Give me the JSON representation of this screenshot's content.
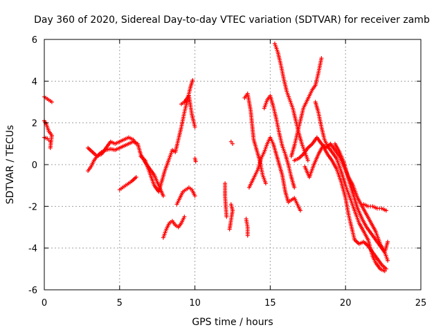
{
  "chart_data": {
    "type": "scatter",
    "title": "Day 360 of 2020, Sidereal Day-to-day VTEC variation (SDTVAR) for receiver zamb",
    "xlabel": "GPS time / hours",
    "ylabel": "SDTVAR / TECUs",
    "xlim": [
      0,
      25
    ],
    "ylim": [
      -6,
      6
    ],
    "xticks": [
      0,
      5,
      10,
      15,
      20,
      25
    ],
    "yticks": [
      -6,
      -4,
      -2,
      0,
      2,
      4,
      6
    ],
    "grid": true,
    "marker": "plus",
    "color": "#ff0000",
    "series": [
      {
        "segments": [
          [
            [
              0.0,
              3.25
            ],
            [
              0.2,
              3.15
            ],
            [
              0.5,
              3.0
            ]
          ],
          [
            [
              0.0,
              2.1
            ],
            [
              0.15,
              1.9
            ],
            [
              0.3,
              1.6
            ],
            [
              0.5,
              1.4
            ],
            [
              0.45,
              1.1
            ],
            [
              0.4,
              0.8
            ]
          ],
          [
            [
              0.0,
              1.3
            ],
            [
              0.2,
              1.25
            ],
            [
              0.4,
              1.1
            ]
          ],
          [
            [
              2.9,
              0.8
            ],
            [
              3.2,
              0.6
            ],
            [
              3.5,
              0.4
            ],
            [
              3.8,
              0.5
            ],
            [
              4.1,
              0.8
            ],
            [
              4.4,
              1.1
            ],
            [
              4.7,
              1.0
            ],
            [
              5.0,
              1.1
            ],
            [
              5.3,
              1.2
            ],
            [
              5.6,
              1.3
            ],
            [
              5.9,
              1.2
            ],
            [
              6.1,
              1.0
            ]
          ],
          [
            [
              2.9,
              -0.3
            ],
            [
              3.1,
              -0.1
            ],
            [
              3.3,
              0.2
            ],
            [
              3.5,
              0.4
            ],
            [
              3.8,
              0.6
            ],
            [
              4.1,
              0.7
            ],
            [
              4.4,
              0.75
            ],
            [
              4.7,
              0.7
            ],
            [
              5.0,
              0.8
            ],
            [
              5.3,
              0.9
            ],
            [
              5.6,
              1.0
            ],
            [
              5.9,
              1.1
            ],
            [
              6.2,
              1.0
            ],
            [
              6.4,
              0.5
            ],
            [
              6.7,
              0.1
            ],
            [
              7.0,
              -0.2
            ],
            [
              7.3,
              -0.5
            ],
            [
              7.6,
              -1.0
            ],
            [
              7.9,
              -1.5
            ]
          ],
          [
            [
              5.0,
              -1.2
            ],
            [
              5.4,
              -1.0
            ],
            [
              5.8,
              -0.8
            ],
            [
              6.1,
              -0.6
            ]
          ],
          [
            [
              6.4,
              0.4
            ],
            [
              6.7,
              0.2
            ],
            [
              7.0,
              -0.4
            ],
            [
              7.3,
              -1.0
            ],
            [
              7.6,
              -1.3
            ],
            [
              7.8,
              -0.8
            ],
            [
              8.0,
              -0.3
            ],
            [
              8.3,
              0.3
            ],
            [
              8.5,
              0.7
            ],
            [
              8.7,
              0.6
            ],
            [
              8.9,
              1.2
            ],
            [
              9.1,
              1.8
            ],
            [
              9.3,
              2.5
            ],
            [
              9.5,
              3.1
            ],
            [
              9.7,
              3.7
            ],
            [
              9.85,
              4.05
            ]
          ],
          [
            [
              8.8,
              -1.9
            ],
            [
              9.0,
              -1.6
            ],
            [
              9.2,
              -1.3
            ],
            [
              9.4,
              -1.2
            ],
            [
              9.6,
              -1.1
            ],
            [
              9.8,
              -1.2
            ],
            [
              10.0,
              -1.5
            ]
          ],
          [
            [
              7.9,
              -3.5
            ],
            [
              8.1,
              -3.1
            ],
            [
              8.3,
              -2.8
            ],
            [
              8.5,
              -2.7
            ],
            [
              8.7,
              -2.9
            ],
            [
              8.9,
              -3.0
            ],
            [
              9.1,
              -2.8
            ],
            [
              9.3,
              -2.5
            ]
          ],
          [
            [
              9.1,
              2.9
            ],
            [
              9.3,
              3.0
            ],
            [
              9.6,
              3.3
            ],
            [
              9.8,
              2.4
            ],
            [
              10.0,
              1.8
            ]
          ],
          [
            [
              10.0,
              0.3
            ],
            [
              10.05,
              0.15
            ]
          ],
          [
            [
              12.0,
              -0.9
            ],
            [
              12.0,
              -1.5
            ],
            [
              12.1,
              -2.5
            ]
          ],
          [
            [
              12.4,
              1.1
            ],
            [
              12.5,
              1.0
            ]
          ],
          [
            [
              12.4,
              -1.9
            ],
            [
              12.5,
              -2.2
            ],
            [
              12.3,
              -3.1
            ]
          ],
          [
            [
              13.4,
              -2.6
            ],
            [
              13.5,
              -3.0
            ],
            [
              13.5,
              -3.4
            ]
          ],
          [
            [
              13.3,
              3.2
            ],
            [
              13.5,
              3.4
            ],
            [
              13.7,
              2.6
            ],
            [
              13.9,
              1.2
            ],
            [
              14.1,
              0.7
            ],
            [
              14.3,
              0.2
            ],
            [
              14.5,
              -0.5
            ],
            [
              14.7,
              -0.9
            ]
          ],
          [
            [
              13.6,
              -1.1
            ],
            [
              13.8,
              -0.8
            ],
            [
              14.0,
              -0.5
            ],
            [
              14.2,
              -0.2
            ],
            [
              14.4,
              0.3
            ],
            [
              14.6,
              0.6
            ],
            [
              14.8,
              1.0
            ],
            [
              15.0,
              1.3
            ],
            [
              15.2,
              1.0
            ],
            [
              15.4,
              0.5
            ],
            [
              15.6,
              0.0
            ],
            [
              15.8,
              -0.5
            ],
            [
              16.0,
              -1.3
            ],
            [
              16.2,
              -1.8
            ],
            [
              16.4,
              -1.7
            ],
            [
              16.6,
              -1.6
            ],
            [
              16.8,
              -1.9
            ],
            [
              17.0,
              -2.2
            ]
          ],
          [
            [
              14.6,
              2.7
            ],
            [
              14.8,
              3.1
            ],
            [
              15.0,
              3.3
            ],
            [
              15.2,
              2.8
            ],
            [
              15.4,
              2.2
            ],
            [
              15.6,
              1.5
            ],
            [
              15.8,
              0.9
            ],
            [
              16.0,
              0.5
            ],
            [
              16.2,
              0.0
            ],
            [
              16.4,
              -0.6
            ],
            [
              16.6,
              -1.1
            ]
          ],
          [
            [
              15.3,
              5.8
            ],
            [
              15.5,
              5.4
            ],
            [
              15.7,
              4.8
            ],
            [
              15.9,
              4.1
            ],
            [
              16.1,
              3.5
            ],
            [
              16.3,
              3.1
            ],
            [
              16.5,
              2.7
            ],
            [
              16.7,
              2.1
            ],
            [
              16.9,
              1.5
            ],
            [
              17.1,
              1.0
            ],
            [
              17.3,
              0.6
            ],
            [
              17.5,
              0.2
            ]
          ],
          [
            [
              16.4,
              0.4
            ],
            [
              16.6,
              0.9
            ],
            [
              16.8,
              1.5
            ],
            [
              17.0,
              2.1
            ],
            [
              17.2,
              2.7
            ],
            [
              17.4,
              3.0
            ],
            [
              17.6,
              3.3
            ],
            [
              17.8,
              3.6
            ],
            [
              18.0,
              3.8
            ],
            [
              18.2,
              4.4
            ],
            [
              18.4,
              5.1
            ]
          ],
          [
            [
              16.6,
              0.2
            ],
            [
              16.9,
              0.3
            ],
            [
              17.2,
              0.5
            ],
            [
              17.5,
              0.8
            ],
            [
              17.8,
              1.0
            ],
            [
              18.1,
              1.3
            ],
            [
              18.4,
              1.0
            ],
            [
              18.7,
              0.8
            ],
            [
              19.0,
              1.0
            ],
            [
              19.3,
              0.7
            ],
            [
              19.6,
              0.4
            ],
            [
              19.9,
              -0.1
            ],
            [
              20.2,
              -0.6
            ],
            [
              20.5,
              -1.0
            ],
            [
              20.8,
              -1.6
            ],
            [
              21.1,
              -2.0
            ],
            [
              21.4,
              -2.4
            ],
            [
              21.7,
              -2.8
            ],
            [
              22.0,
              -3.2
            ],
            [
              22.3,
              -3.8
            ],
            [
              22.6,
              -4.2
            ],
            [
              22.8,
              -4.6
            ]
          ],
          [
            [
              17.3,
              -0.1
            ],
            [
              17.6,
              -0.6
            ],
            [
              17.9,
              0.0
            ],
            [
              18.2,
              0.5
            ],
            [
              18.5,
              0.9
            ],
            [
              18.8,
              0.5
            ],
            [
              19.1,
              0.2
            ],
            [
              19.4,
              -0.2
            ],
            [
              19.7,
              -0.8
            ],
            [
              20.0,
              -1.6
            ],
            [
              20.2,
              -2.4
            ],
            [
              20.4,
              -3.0
            ],
            [
              20.6,
              -3.6
            ],
            [
              20.9,
              -3.8
            ],
            [
              21.2,
              -3.7
            ],
            [
              21.5,
              -3.9
            ],
            [
              21.8,
              -4.2
            ],
            [
              22.1,
              -4.5
            ],
            [
              22.4,
              -4.8
            ],
            [
              22.7,
              -5.0
            ]
          ],
          [
            [
              18.0,
              3.0
            ],
            [
              18.2,
              2.5
            ],
            [
              18.4,
              1.8
            ],
            [
              18.6,
              1.2
            ],
            [
              18.8,
              0.9
            ],
            [
              19.1,
              0.6
            ],
            [
              19.4,
              0.3
            ],
            [
              19.7,
              -0.3
            ],
            [
              20.0,
              -1.0
            ],
            [
              20.3,
              -1.6
            ],
            [
              20.6,
              -2.2
            ],
            [
              20.9,
              -2.8
            ],
            [
              21.2,
              -3.2
            ],
            [
              21.5,
              -3.6
            ],
            [
              21.8,
              -4.4
            ],
            [
              22.0,
              -4.7
            ],
            [
              22.3,
              -5.0
            ],
            [
              22.6,
              -5.1
            ]
          ],
          [
            [
              19.3,
              1.0
            ],
            [
              19.6,
              0.6
            ],
            [
              19.9,
              0.1
            ],
            [
              20.2,
              -0.7
            ],
            [
              20.5,
              -1.4
            ],
            [
              20.8,
              -2.1
            ],
            [
              21.1,
              -2.6
            ],
            [
              21.4,
              -3.0
            ],
            [
              21.7,
              -3.3
            ],
            [
              22.0,
              -3.6
            ],
            [
              22.3,
              -3.9
            ],
            [
              22.6,
              -4.2
            ],
            [
              22.8,
              -3.7
            ]
          ],
          [
            [
              21.2,
              -1.9
            ],
            [
              21.5,
              -2.0
            ],
            [
              21.8,
              -2.0
            ],
            [
              22.1,
              -2.1
            ],
            [
              22.4,
              -2.1
            ],
            [
              22.7,
              -2.2
            ]
          ]
        ]
      }
    ]
  }
}
